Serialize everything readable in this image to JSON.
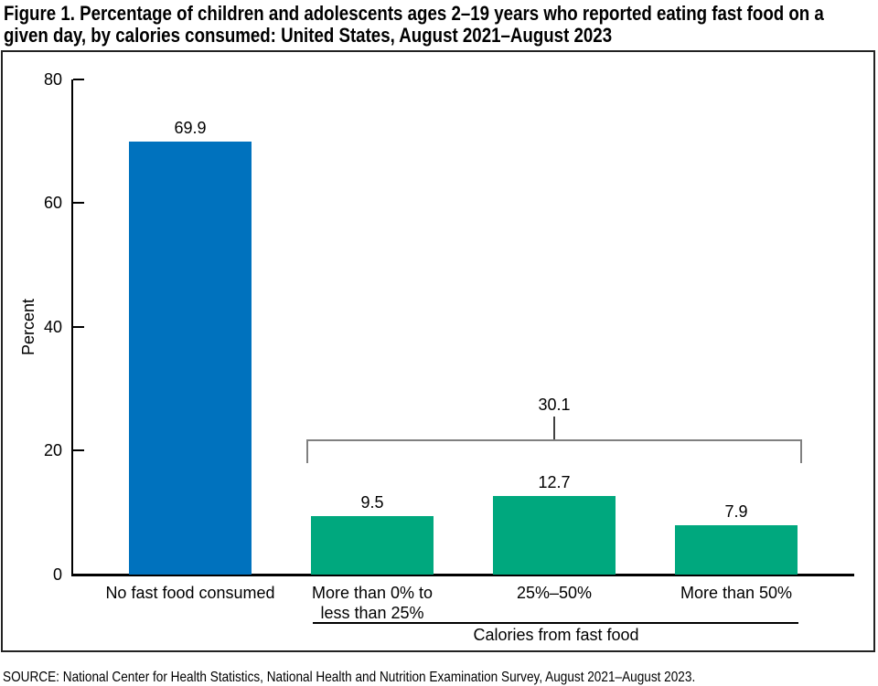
{
  "title": "Figure 1. Percentage of children and adolescents ages 2–19 years who reported eating fast food on a given day, by calories consumed: United States, August 2021–August 2023",
  "title_lines": [
    "Figure 1. Percentage of children and adolescents ages 2–19 years who reported eating fast food on a",
    "given day, by calories consumed: United States, August 2021–August 2023"
  ],
  "source": "SOURCE: National Center for Health Statistics, National Health and Nutrition Examination Survey, August 2021–August 2023.",
  "colors": {
    "bar_blue": "#0072BE",
    "bar_green": "#00A87E",
    "bracket_gray": "#808080",
    "axis_black": "#000000"
  },
  "chart_data": {
    "type": "bar",
    "title": "Figure 1. Percentage of children and adolescents ages 2–19 years who reported eating fast food on a given day, by calories consumed: United States, August 2021–August 2023",
    "xlabel": "",
    "ylabel": "Percent",
    "ylim": [
      0,
      80
    ],
    "yticks": [
      0,
      20,
      40,
      60,
      80
    ],
    "grid": false,
    "legend": false,
    "categories": [
      "No fast food consumed",
      "More than 0% to less than 25%",
      "25%–50%",
      "More than 50%"
    ],
    "category_lines": [
      [
        "No fast food consumed"
      ],
      [
        "More than 0% to",
        "less than 25%"
      ],
      [
        "25%–50%"
      ],
      [
        "More than 50%"
      ]
    ],
    "values": [
      69.9,
      9.5,
      12.7,
      7.9
    ],
    "value_labels": [
      "69.9",
      "9.5",
      "12.7",
      "7.9"
    ],
    "bar_colors": [
      "#0072BE",
      "#00A87E",
      "#00A87E",
      "#00A87E"
    ],
    "bracket": {
      "label": "30.1",
      "covers_categories": [
        "More than 0% to less than 25%",
        "25%–50%",
        "More than 50%"
      ]
    },
    "group_label": "Calories from fast food"
  }
}
